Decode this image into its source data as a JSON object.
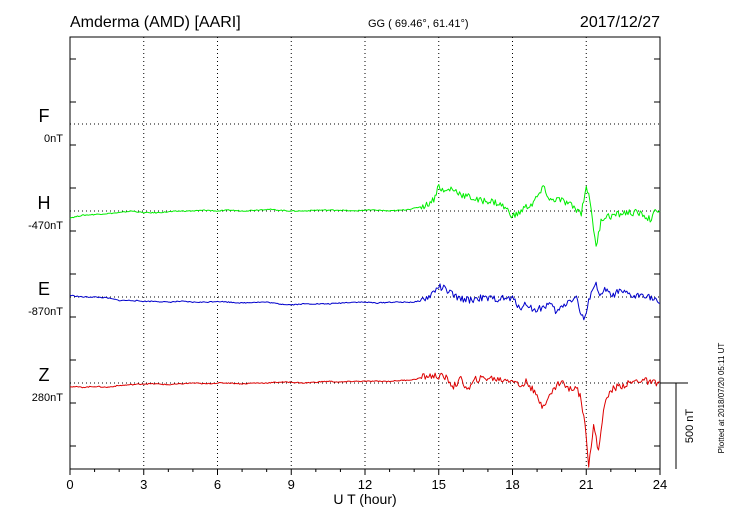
{
  "chart_data": {
    "type": "line",
    "title": "Amderma (AMD)  [AARI]",
    "geo_label": "GG ( 69.46°,  61.41°)",
    "date": "2017/12/27",
    "xlabel": "U T (hour)",
    "xlim": [
      0,
      24
    ],
    "xticks": [
      0,
      3,
      6,
      9,
      12,
      15,
      18,
      21,
      24
    ],
    "scale_bar_label": "500 nT",
    "scale_bar_nt": 500,
    "footer": "Plotted at 2018/07/20 05:11 UT",
    "grid": true,
    "series": [
      {
        "name": "F",
        "baseline_label": "0nT",
        "color": "#ffaa00",
        "x": [],
        "y": []
      },
      {
        "name": "H",
        "baseline_label": "-470nT",
        "color": "#00ee00",
        "x": [
          0,
          0.5,
          1,
          1.5,
          2,
          2.5,
          3,
          3.5,
          4,
          4.5,
          5,
          5.5,
          6,
          6.5,
          7,
          7.5,
          8,
          8.5,
          9,
          9.5,
          10,
          10.5,
          11,
          11.5,
          12,
          12.5,
          13,
          13.5,
          14,
          14.5,
          14.8,
          15,
          15.2,
          15.5,
          15.8,
          16,
          16.3,
          16.6,
          17,
          17.3,
          17.6,
          17.9,
          18,
          18.2,
          18.5,
          18.8,
          19,
          19.3,
          19.5,
          19.8,
          20,
          20.3,
          20.6,
          20.8,
          21,
          21.2,
          21.4,
          21.6,
          21.8,
          22,
          22.3,
          22.6,
          23,
          23.3,
          23.6,
          23.8,
          24
        ],
        "y": [
          -40,
          -25,
          -20,
          -15,
          -10,
          0,
          -10,
          -10,
          -5,
          0,
          0,
          5,
          0,
          5,
          0,
          5,
          10,
          5,
          0,
          0,
          5,
          5,
          5,
          0,
          5,
          5,
          0,
          5,
          15,
          35,
          70,
          150,
          110,
          130,
          110,
          90,
          80,
          60,
          60,
          50,
          30,
          -10,
          -30,
          -20,
          20,
          40,
          80,
          140,
          60,
          70,
          60,
          40,
          10,
          -10,
          150,
          20,
          -220,
          -50,
          -30,
          -30,
          -20,
          -10,
          -10,
          -20,
          -50,
          -10,
          0
        ]
      },
      {
        "name": "E",
        "baseline_label": "-870nT",
        "color": "#0000cc",
        "x": [
          0,
          0.5,
          1,
          1.5,
          2,
          2.5,
          3,
          3.5,
          4,
          4.5,
          5,
          5.5,
          6,
          6.5,
          7,
          7.5,
          8,
          8.5,
          9,
          9.5,
          10,
          10.5,
          11,
          11.5,
          12,
          12.5,
          13,
          13.5,
          14,
          14.3,
          14.6,
          15,
          15.2,
          15.5,
          15.8,
          16,
          16.3,
          16.6,
          17,
          17.3,
          17.6,
          18,
          18.3,
          18.6,
          18.9,
          19.2,
          19.5,
          19.8,
          20,
          20.3,
          20.6,
          20.8,
          20.9,
          21,
          21.2,
          21.4,
          21.6,
          21.8,
          22,
          22.3,
          22.6,
          23,
          23.3,
          23.6,
          24
        ],
        "y": [
          10,
          0,
          0,
          -5,
          -20,
          -20,
          -25,
          -25,
          -30,
          -25,
          -30,
          -30,
          -25,
          -30,
          -35,
          -30,
          -30,
          -40,
          -45,
          -40,
          -40,
          -40,
          -35,
          -30,
          -30,
          -35,
          -30,
          -30,
          -30,
          -20,
          0,
          60,
          50,
          20,
          -10,
          -10,
          -20,
          -5,
          -10,
          -10,
          -10,
          -10,
          -60,
          -40,
          -80,
          -60,
          -40,
          -90,
          -60,
          -20,
          0,
          -110,
          -130,
          -100,
          40,
          70,
          0,
          50,
          0,
          30,
          20,
          0,
          20,
          0,
          -40
        ]
      },
      {
        "name": "Z",
        "baseline_label": "280nT",
        "color": "#dd0000",
        "x": [
          0,
          0.5,
          1,
          1.5,
          2,
          2.5,
          3,
          3.5,
          4,
          4.5,
          5,
          5.5,
          6,
          6.5,
          7,
          7.5,
          8,
          8.5,
          9,
          9.5,
          10,
          10.5,
          11,
          11.5,
          12,
          12.5,
          13,
          13.5,
          14,
          14.5,
          15,
          15.3,
          15.6,
          15.9,
          16.2,
          16.5,
          17,
          17.5,
          18,
          18.3,
          18.6,
          18.9,
          19.2,
          19.5,
          19.8,
          20,
          20.3,
          20.6,
          20.8,
          21,
          21.1,
          21.3,
          21.5,
          21.7,
          22,
          22.3,
          22.6,
          23,
          23.3,
          23.6,
          24
        ],
        "y": [
          -20,
          -25,
          -20,
          -25,
          -15,
          -10,
          -5,
          -5,
          -10,
          -5,
          0,
          -5,
          0,
          0,
          -5,
          0,
          0,
          5,
          5,
          0,
          5,
          10,
          5,
          10,
          10,
          10,
          10,
          15,
          20,
          40,
          40,
          30,
          -20,
          20,
          -40,
          20,
          30,
          20,
          20,
          -20,
          10,
          -60,
          -130,
          -80,
          -10,
          10,
          -40,
          -20,
          -100,
          -300,
          -470,
          -250,
          -400,
          -150,
          -40,
          -20,
          -10,
          10,
          20,
          0,
          5
        ]
      }
    ]
  }
}
